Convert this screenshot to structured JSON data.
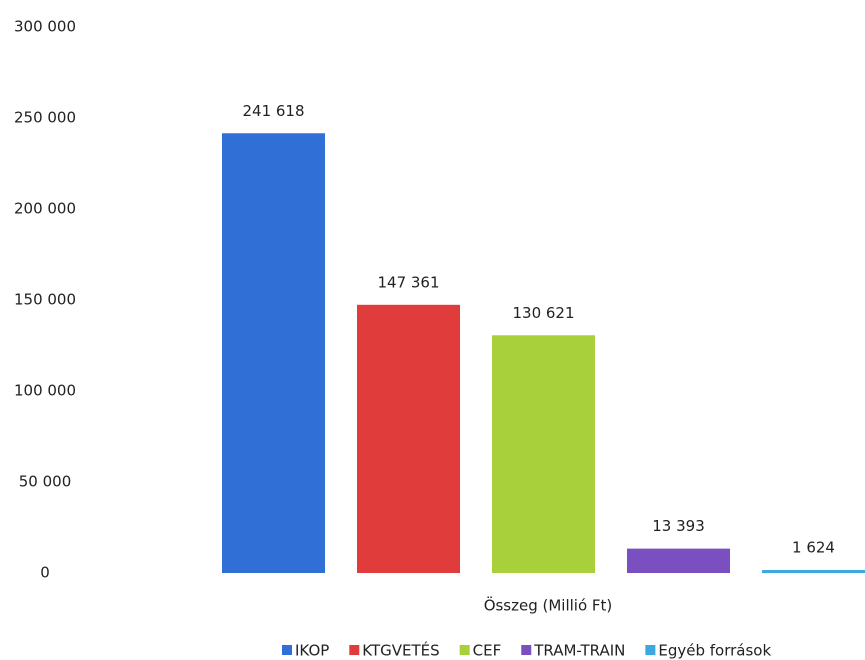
{
  "chart_data": {
    "type": "bar",
    "categories": [
      "Összeg (Millió Ft)"
    ],
    "series": [
      {
        "name": "IKOP",
        "color": "#2f6fd6",
        "values": [
          241618
        ],
        "value_labels": [
          "241 618"
        ]
      },
      {
        "name": "KTGVETÉS",
        "color": "#e03c3c",
        "values": [
          147361
        ],
        "value_labels": [
          "147 361"
        ]
      },
      {
        "name": "CEF",
        "color": "#a8d03a",
        "values": [
          130621
        ],
        "value_labels": [
          "130 621"
        ]
      },
      {
        "name": "TRAM-TRAIN",
        "color": "#7a4fbf",
        "values": [
          13393
        ],
        "value_labels": [
          "13 393"
        ]
      },
      {
        "name": "Egyéb források",
        "color": "#3aa9e0",
        "values": [
          1624
        ],
        "value_labels": [
          "1 624"
        ]
      }
    ],
    "ylim": [
      0,
      300000
    ],
    "yticks": [
      {
        "value": 0,
        "label": "0"
      },
      {
        "value": 50000,
        "label": "50 000"
      },
      {
        "value": 100000,
        "label": "100 000"
      },
      {
        "value": 150000,
        "label": "150 000"
      },
      {
        "value": 200000,
        "label": "200 000"
      },
      {
        "value": 250000,
        "label": "250 000"
      },
      {
        "value": 300000,
        "label": "300 000"
      }
    ],
    "grid": false,
    "legend": "bottom"
  }
}
